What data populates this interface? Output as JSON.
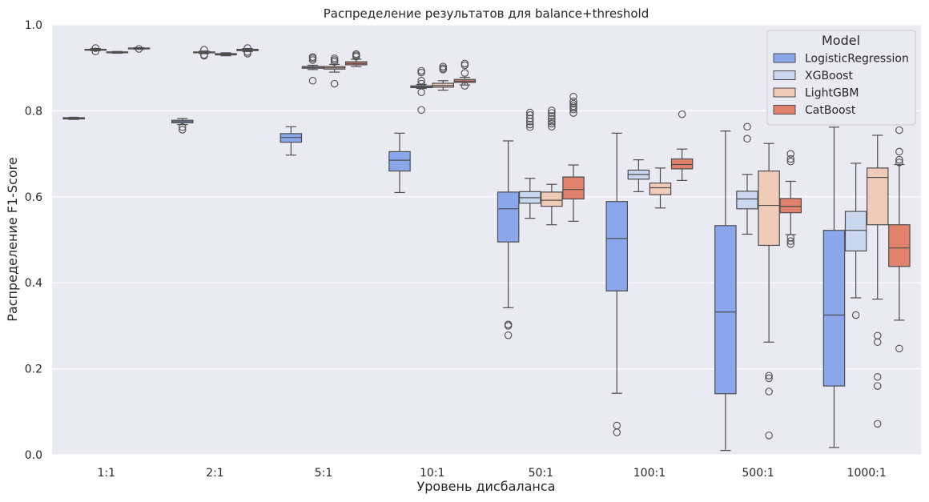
{
  "chart_data": {
    "type": "boxplot",
    "title": "Распределение результатов для balance+threshold",
    "xlabel": "Уровень дисбаланса",
    "ylabel": "Распределение F1-Score",
    "ylim": [
      0,
      1
    ],
    "yticks": [
      "0.0",
      "0.2",
      "0.4",
      "0.6",
      "0.8",
      "1.0"
    ],
    "categories": [
      "1:1",
      "2:1",
      "5:1",
      "10:1",
      "50:1",
      "100:1",
      "500:1",
      "1000:1"
    ],
    "legend": {
      "title": "Model",
      "position": "top-right"
    },
    "series": [
      {
        "name": "LogisticRegression",
        "color": "#8aa7ec",
        "boxes": [
          {
            "whislo": 0.78,
            "q1": 0.781,
            "med": 0.782,
            "q3": 0.784,
            "whishi": 0.785,
            "fliers": []
          },
          {
            "whislo": 0.768,
            "q1": 0.772,
            "med": 0.775,
            "q3": 0.778,
            "whishi": 0.782,
            "fliers": [
              0.762,
              0.756
            ]
          },
          {
            "whislo": 0.697,
            "q1": 0.727,
            "med": 0.738,
            "q3": 0.747,
            "whishi": 0.763,
            "fliers": []
          },
          {
            "whislo": 0.61,
            "q1": 0.66,
            "med": 0.685,
            "q3": 0.705,
            "whishi": 0.748,
            "fliers": []
          },
          {
            "whislo": 0.342,
            "q1": 0.495,
            "med": 0.572,
            "q3": 0.611,
            "whishi": 0.73,
            "fliers": [
              0.303,
              0.3,
              0.278
            ]
          },
          {
            "whislo": 0.143,
            "q1": 0.381,
            "med": 0.503,
            "q3": 0.589,
            "whishi": 0.748,
            "fliers": [
              0.068,
              0.052
            ]
          },
          {
            "whislo": 0.01,
            "q1": 0.142,
            "med": 0.332,
            "q3": 0.533,
            "whishi": 0.753,
            "fliers": []
          },
          {
            "whislo": 0.017,
            "q1": 0.16,
            "med": 0.325,
            "q3": 0.522,
            "whishi": 0.762,
            "fliers": []
          }
        ]
      },
      {
        "name": "XGBoost",
        "color": "#c9d7ef",
        "boxes": [
          {
            "whislo": 0.94,
            "q1": 0.941,
            "med": 0.942,
            "q3": 0.943,
            "whishi": 0.945,
            "fliers": [
              0.946,
              0.938
            ]
          },
          {
            "whislo": 0.933,
            "q1": 0.935,
            "med": 0.936,
            "q3": 0.937,
            "whishi": 0.939,
            "fliers": [
              0.942,
              0.93,
              0.928
            ]
          },
          {
            "whislo": 0.896,
            "q1": 0.899,
            "med": 0.901,
            "q3": 0.903,
            "whishi": 0.906,
            "fliers": [
              0.925,
              0.922,
              0.918,
              0.87
            ]
          },
          {
            "whislo": 0.852,
            "q1": 0.854,
            "med": 0.856,
            "q3": 0.858,
            "whishi": 0.861,
            "fliers": [
              0.893,
              0.889,
              0.87,
              0.863,
              0.843,
              0.802
            ]
          },
          {
            "whislo": 0.55,
            "q1": 0.585,
            "med": 0.598,
            "q3": 0.612,
            "whishi": 0.643,
            "fliers": [
              0.796,
              0.79,
              0.782,
              0.775,
              0.768,
              0.762
            ]
          },
          {
            "whislo": 0.612,
            "q1": 0.641,
            "med": 0.652,
            "q3": 0.662,
            "whishi": 0.686,
            "fliers": []
          },
          {
            "whislo": 0.513,
            "q1": 0.572,
            "med": 0.595,
            "q3": 0.613,
            "whishi": 0.652,
            "fliers": [
              0.763,
              0.735
            ]
          },
          {
            "whislo": 0.365,
            "q1": 0.474,
            "med": 0.522,
            "q3": 0.566,
            "whishi": 0.678,
            "fliers": [
              0.325
            ]
          }
        ]
      },
      {
        "name": "LightGBM",
        "color": "#f0cbb8",
        "boxes": [
          {
            "whislo": 0.934,
            "q1": 0.935,
            "med": 0.936,
            "q3": 0.937,
            "whishi": 0.938,
            "fliers": []
          },
          {
            "whislo": 0.928,
            "q1": 0.93,
            "med": 0.931,
            "q3": 0.933,
            "whishi": 0.935,
            "fliers": []
          },
          {
            "whislo": 0.89,
            "q1": 0.897,
            "med": 0.9,
            "q3": 0.903,
            "whishi": 0.908,
            "fliers": [
              0.922,
              0.918,
              0.914,
              0.863
            ]
          },
          {
            "whislo": 0.848,
            "q1": 0.855,
            "med": 0.859,
            "q3": 0.864,
            "whishi": 0.87,
            "fliers": [
              0.903,
              0.899,
              0.896
            ]
          },
          {
            "whislo": 0.535,
            "q1": 0.578,
            "med": 0.592,
            "q3": 0.611,
            "whishi": 0.629,
            "fliers": [
              0.801,
              0.795,
              0.788,
              0.781,
              0.775,
              0.77,
              0.763
            ]
          },
          {
            "whislo": 0.574,
            "q1": 0.605,
            "med": 0.621,
            "q3": 0.632,
            "whishi": 0.667,
            "fliers": []
          },
          {
            "whislo": 0.262,
            "q1": 0.487,
            "med": 0.58,
            "q3": 0.66,
            "whishi": 0.724,
            "fliers": [
              0.184,
              0.178,
              0.147,
              0.045
            ]
          },
          {
            "whislo": 0.362,
            "q1": 0.535,
            "med": 0.645,
            "q3": 0.667,
            "whishi": 0.743,
            "fliers": [
              0.277,
              0.262,
              0.181,
              0.16,
              0.072
            ]
          }
        ]
      },
      {
        "name": "CatBoost",
        "color": "#e1826c",
        "boxes": [
          {
            "whislo": 0.943,
            "q1": 0.944,
            "med": 0.945,
            "q3": 0.946,
            "whishi": 0.947,
            "fliers": [
              0.944
            ]
          },
          {
            "whislo": 0.938,
            "q1": 0.94,
            "med": 0.941,
            "q3": 0.943,
            "whishi": 0.945,
            "fliers": [
              0.946,
              0.937,
              0.933
            ]
          },
          {
            "whislo": 0.903,
            "q1": 0.907,
            "med": 0.91,
            "q3": 0.914,
            "whishi": 0.92,
            "fliers": [
              0.932,
              0.929,
              0.926
            ]
          },
          {
            "whislo": 0.86,
            "q1": 0.866,
            "med": 0.869,
            "q3": 0.873,
            "whishi": 0.878,
            "fliers": [
              0.91,
              0.906,
              0.888,
              0.858
            ]
          },
          {
            "whislo": 0.543,
            "q1": 0.595,
            "med": 0.617,
            "q3": 0.646,
            "whishi": 0.674,
            "fliers": [
              0.833,
              0.822,
              0.816,
              0.811,
              0.807,
              0.803,
              0.795
            ]
          },
          {
            "whislo": 0.638,
            "q1": 0.665,
            "med": 0.675,
            "q3": 0.688,
            "whishi": 0.711,
            "fliers": [
              0.792
            ]
          },
          {
            "whislo": 0.512,
            "q1": 0.563,
            "med": 0.578,
            "q3": 0.596,
            "whishi": 0.636,
            "fliers": [
              0.7,
              0.688,
              0.682,
              0.505,
              0.497,
              0.49
            ]
          },
          {
            "whislo": 0.313,
            "q1": 0.438,
            "med": 0.481,
            "q3": 0.535,
            "whishi": 0.675,
            "fliers": [
              0.755,
              0.705,
              0.686,
              0.68,
              0.247
            ]
          }
        ]
      }
    ]
  }
}
